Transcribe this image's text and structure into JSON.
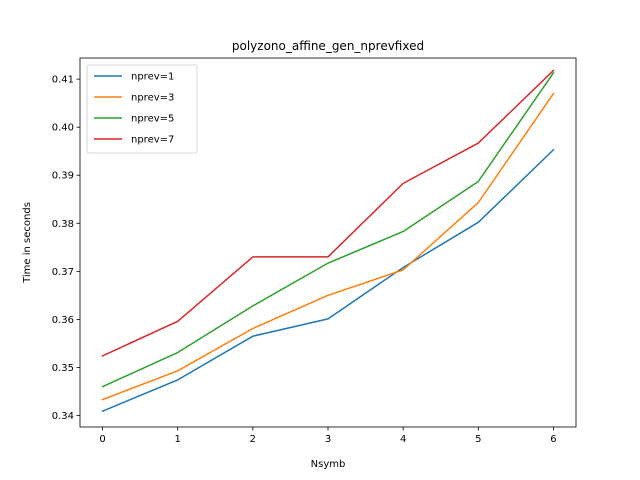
{
  "chart_data": {
    "type": "line",
    "title": "polyzono_affine_gen_nprevfixed",
    "xlabel": "Nsymb",
    "ylabel": "Time in seconds",
    "x": [
      0,
      1,
      2,
      3,
      4,
      5,
      6
    ],
    "xticks": [
      "0",
      "1",
      "2",
      "3",
      "4",
      "5",
      "6"
    ],
    "yticks": [
      "0.34",
      "0.35",
      "0.36",
      "0.37",
      "0.38",
      "0.39",
      "0.40",
      "0.41"
    ],
    "ytick_values": [
      0.34,
      0.35,
      0.36,
      0.37,
      0.38,
      0.39,
      0.4,
      0.41
    ],
    "xlim": [
      -0.3,
      6.3
    ],
    "ylim": [
      0.3376,
      0.4144
    ],
    "grid": false,
    "legend_position": "top-left",
    "series": [
      {
        "name": "nprev=1",
        "color": "#1f77b4",
        "values": [
          0.3409,
          0.3474,
          0.3565,
          0.3601,
          0.3708,
          0.3802,
          0.3953
        ]
      },
      {
        "name": "nprev=3",
        "color": "#ff7f0e",
        "values": [
          0.3433,
          0.3493,
          0.3581,
          0.365,
          0.3703,
          0.3843,
          0.407
        ]
      },
      {
        "name": "nprev=5",
        "color": "#2ca02c",
        "values": [
          0.346,
          0.3531,
          0.3628,
          0.3717,
          0.3783,
          0.3887,
          0.4113
        ]
      },
      {
        "name": "nprev=7",
        "color": "#d62728",
        "values": [
          0.3524,
          0.3596,
          0.373,
          0.373,
          0.3883,
          0.3967,
          0.4118
        ]
      }
    ]
  }
}
